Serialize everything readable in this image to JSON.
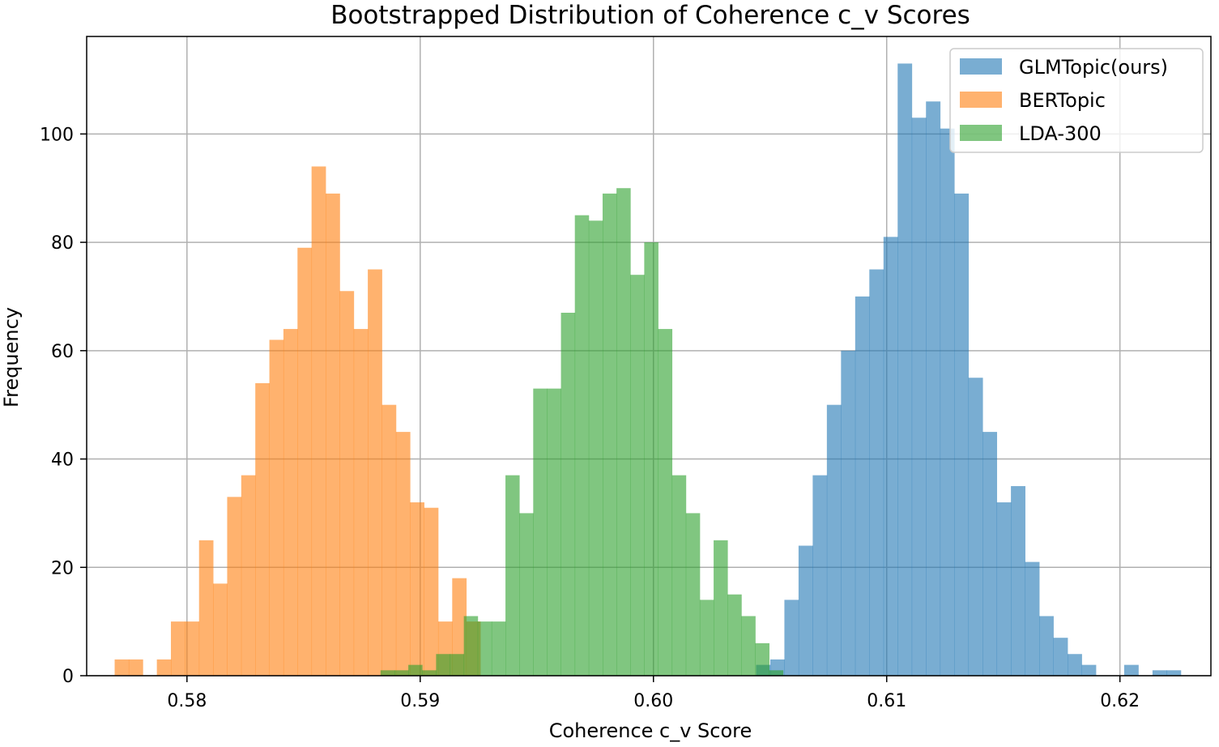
{
  "chart_data": {
    "type": "histogram",
    "title": "Bootstrapped Distribution of Coherence c_v Scores",
    "xlabel": "Coherence c_v Score",
    "ylabel": "Frequency",
    "xlim": [
      0.5757,
      0.6239
    ],
    "ylim": [
      0,
      118
    ],
    "x_ticks": [
      0.58,
      0.59,
      0.6,
      0.61,
      0.62
    ],
    "x_tick_labels": [
      "0.58",
      "0.59",
      "0.60",
      "0.61",
      "0.62"
    ],
    "y_ticks": [
      0,
      20,
      40,
      60,
      80,
      100
    ],
    "y_tick_labels": [
      "0",
      "20",
      "40",
      "60",
      "80",
      "100"
    ],
    "grid": true,
    "legend_position": "top-right",
    "series": [
      {
        "name": "GLMTopic(ours)",
        "color": "#1f77b4",
        "opacity": 0.6,
        "bin_start": 0.6044,
        "bin_width": 0.000607,
        "counts": [
          2,
          3,
          14,
          24,
          37,
          50,
          60,
          70,
          75,
          81,
          113,
          103,
          106,
          101,
          89,
          55,
          45,
          32,
          35,
          21,
          11,
          7,
          4,
          2,
          0,
          0,
          2,
          0,
          1,
          1
        ]
      },
      {
        "name": "BERTopic",
        "color": "#ff7f0e",
        "opacity": 0.6,
        "bin_start": 0.5769,
        "bin_width": 0.000603,
        "counts": [
          3,
          3,
          0,
          3,
          10,
          10,
          25,
          17,
          33,
          37,
          54,
          62,
          64,
          79,
          94,
          89,
          71,
          64,
          75,
          50,
          45,
          32,
          31,
          10,
          18,
          10
        ]
      },
      {
        "name": "LDA-300",
        "color": "#2ca02c",
        "opacity": 0.6,
        "bin_start": 0.5883,
        "bin_width": 0.000595,
        "counts": [
          1,
          1,
          2,
          1,
          4,
          4,
          11,
          10,
          10,
          37,
          30,
          53,
          53,
          67,
          85,
          84,
          89,
          90,
          74,
          80,
          64,
          37,
          30,
          14,
          25,
          15,
          11,
          6,
          1
        ]
      }
    ]
  }
}
